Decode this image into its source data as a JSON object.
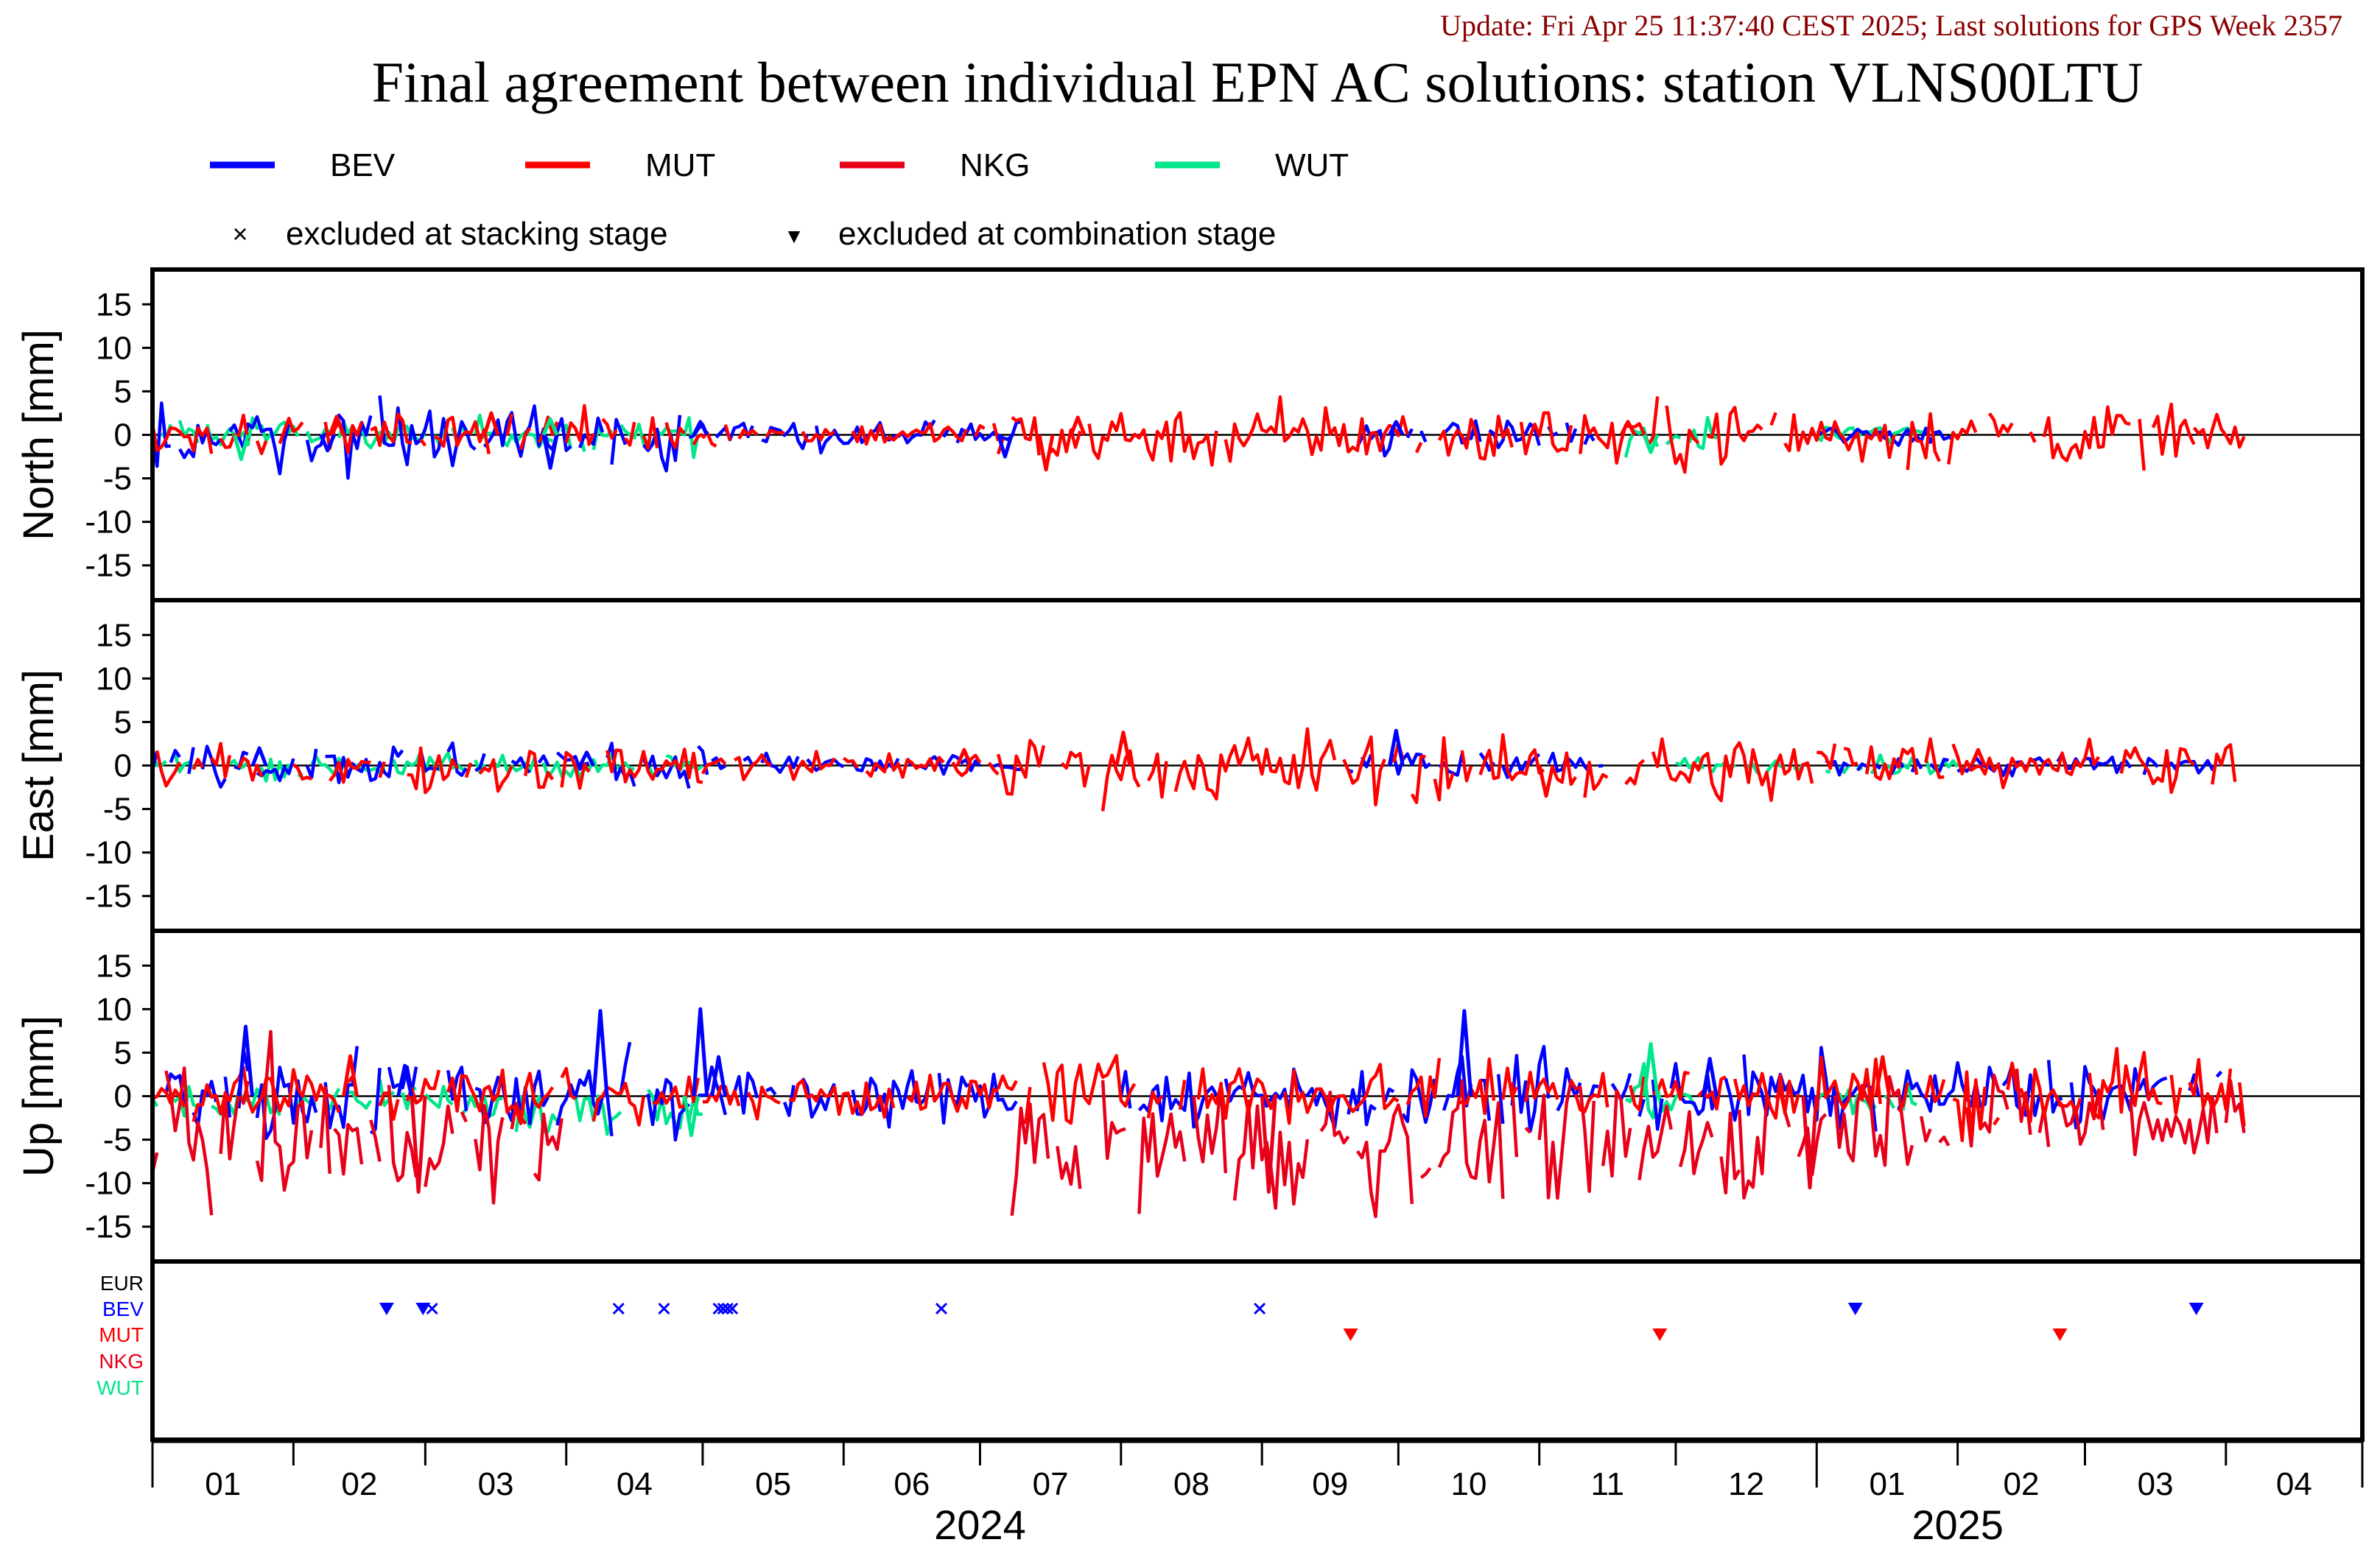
{
  "header": {
    "update_line": "Update: Fri Apr 25 11:37:40 CEST 2025; Last solutions for GPS Week 2357",
    "title": "Final agreement between individual EPN AC solutions: station VLNS00LTU"
  },
  "colors": {
    "BEV": "#0000ff",
    "MUT": "#ff0000",
    "NKG": "#e8001a",
    "WUT": "#00e68a",
    "EUR": "#000000",
    "update": "#8b0000"
  },
  "legend": {
    "series": [
      {
        "name": "BEV",
        "color": "#0000ff"
      },
      {
        "name": "MUT",
        "color": "#ff0000"
      },
      {
        "name": "NKG",
        "color": "#e8001a"
      },
      {
        "name": "WUT",
        "color": "#00e68a"
      }
    ],
    "markers": [
      {
        "symbol": "×",
        "label": "excluded at stacking stage"
      },
      {
        "symbol": "▼",
        "label": "excluded at combination stage"
      }
    ]
  },
  "chart_data": {
    "type": "line",
    "x_axis": {
      "unit": "month",
      "range": [
        "2024-01-01",
        "2025-04-30"
      ],
      "month_labels": [
        "01",
        "02",
        "03",
        "04",
        "05",
        "06",
        "07",
        "08",
        "09",
        "10",
        "11",
        "12",
        "01",
        "02",
        "03",
        "04"
      ],
      "year_labels": [
        {
          "label": "2024",
          "month": "2024-07"
        },
        {
          "label": "2025",
          "month": "2025-02"
        }
      ]
    },
    "panels": [
      {
        "ylabel": "North [mm]",
        "ylim": [
          -19,
          19
        ],
        "yticks": [
          15,
          10,
          5,
          0,
          -5,
          -10,
          -15
        ],
        "profile": [
          {
            "series": "BEV",
            "segments": [
              [
                "2024-01-01",
                "2024-05-02",
                0,
                1.8
              ],
              [
                "2024-05-02",
                "2024-07-10",
                0,
                0.8
              ],
              [
                "2024-09-20",
                "2024-11-15",
                0,
                0.8
              ],
              [
                "2025-01-01",
                "2025-01-31",
                0,
                0.6
              ]
            ]
          },
          {
            "series": "MUT",
            "segments": [
              [
                "2024-01-01",
                "2024-05-01",
                0.2,
                1.2
              ],
              [
                "2024-05-01",
                "2024-07-05",
                0.1,
                0.7
              ],
              [
                "2024-07-05",
                "2025-03-25",
                0,
                1.7
              ],
              [
                "2025-03-25",
                "2025-04-05",
                0,
                0.8
              ]
            ]
          },
          {
            "series": "WUT",
            "segments": [
              [
                "2024-01-01",
                "2024-05-01",
                0,
                0.9
              ],
              [
                "2024-11-20",
                "2024-12-10",
                0,
                0.9
              ],
              [
                "2025-01-01",
                "2025-01-25",
                0,
                0.6
              ]
            ]
          }
        ],
        "spikes": [
          {
            "series": "BEV",
            "date": "2024-03-28",
            "value": -3.8
          },
          {
            "series": "BEV",
            "date": "2024-07-06",
            "value": -2.5
          },
          {
            "series": "BEV",
            "date": "2024-04-30",
            "value": 1.5
          },
          {
            "series": "BEV",
            "date": "2024-09-30",
            "value": 1.5
          },
          {
            "series": "BEV",
            "date": "2024-02-08",
            "value": -1.8
          },
          {
            "series": "WUT",
            "date": "2024-01-20",
            "value": -2.8
          },
          {
            "series": "WUT",
            "date": "2024-03-28",
            "value": 1.8
          },
          {
            "series": "WUT",
            "date": "2024-11-25",
            "value": -2.0
          },
          {
            "series": "MUT",
            "date": "2024-07-15",
            "value": -4.0
          },
          {
            "series": "MUT",
            "date": "2024-03-15",
            "value": 2.5
          },
          {
            "series": "MUT",
            "date": "2024-02-10",
            "value": 2.1
          },
          {
            "series": "MUT",
            "date": "2024-11-20",
            "value": 1.5
          },
          {
            "series": "MUT",
            "date": "2024-07-22",
            "value": 2.0
          }
        ]
      },
      {
        "ylabel": "East [mm]",
        "ylim": [
          -19,
          19
        ],
        "yticks": [
          15,
          10,
          5,
          0,
          -5,
          -10,
          -15
        ],
        "profile": [
          {
            "series": "BEV",
            "segments": [
              [
                "2024-01-01",
                "2024-05-02",
                0.2,
                1.2
              ],
              [
                "2024-05-02",
                "2024-07-10",
                0,
                0.7
              ],
              [
                "2024-09-20",
                "2024-11-15",
                0,
                0.8
              ],
              [
                "2025-01-01",
                "2025-03-30",
                0,
                0.6
              ]
            ]
          },
          {
            "series": "MUT",
            "segments": [
              [
                "2024-01-01",
                "2024-05-01",
                -0.3,
                1.3
              ],
              [
                "2024-05-01",
                "2024-07-05",
                0,
                0.8
              ],
              [
                "2024-07-05",
                "2024-10-15",
                0,
                2.0
              ],
              [
                "2024-10-15",
                "2024-12-31",
                -0.6,
                1.8
              ],
              [
                "2025-01-01",
                "2025-04-05",
                0.4,
                1.3
              ]
            ]
          },
          {
            "series": "WUT",
            "segments": [
              [
                "2024-01-01",
                "2024-05-01",
                0,
                0.7
              ],
              [
                "2024-12-01",
                "2025-02-01",
                0,
                0.5
              ]
            ]
          }
        ],
        "spikes": [
          {
            "series": "BEV",
            "date": "2024-01-24",
            "value": 2.0
          },
          {
            "series": "BEV",
            "date": "2024-09-30",
            "value": 4.0
          },
          {
            "series": "BEV",
            "date": "2024-04-05",
            "value": 1.5
          },
          {
            "series": "MUT",
            "date": "2024-08-01",
            "value": 3.8
          },
          {
            "series": "MUT",
            "date": "2024-11-02",
            "value": -3.5
          },
          {
            "series": "MUT",
            "date": "2024-06-27",
            "value": 1.8
          },
          {
            "series": "MUT",
            "date": "2025-02-05",
            "value": 1.8
          }
        ]
      },
      {
        "ylabel": "Up [mm]",
        "ylim": [
          -19,
          19
        ],
        "yticks": [
          15,
          10,
          5,
          0,
          -5,
          -10,
          -15
        ],
        "profile": [
          {
            "series": "BEV",
            "segments": [
              [
                "2024-01-01",
                "2024-05-02",
                0.3,
                2.5
              ],
              [
                "2024-05-02",
                "2024-07-10",
                0,
                1.5
              ],
              [
                "2024-08-01",
                "2024-09-30",
                0.2,
                2.0
              ],
              [
                "2024-09-30",
                "2024-12-15",
                0.2,
                2.0
              ],
              [
                "2024-12-15",
                "2025-03-31",
                0.3,
                2.0
              ]
            ]
          },
          {
            "series": "MUT",
            "segments": [
              [
                "2024-01-01",
                "2024-05-01",
                0.3,
                1.6
              ],
              [
                "2024-05-01",
                "2024-07-05",
                0,
                1.3
              ],
              [
                "2024-07-05",
                "2024-12-31",
                0.5,
                1.8
              ],
              [
                "2025-01-01",
                "2025-04-05",
                0.5,
                2.2
              ]
            ]
          },
          {
            "series": "NKG",
            "segments": [
              [
                "2024-01-01",
                "2024-02-10",
                -4.5,
                4.0
              ],
              [
                "2024-02-10",
                "2024-03-31",
                -5.5,
                3.0
              ],
              [
                "2024-07-08",
                "2024-08-02",
                -6.0,
                3.5
              ],
              [
                "2024-08-05",
                "2024-12-15",
                -5.5,
                4.0
              ],
              [
                "2024-12-15",
                "2025-01-05",
                -4.0,
                3.5
              ],
              [
                "2025-01-05",
                "2025-04-05",
                -2.5,
                2.5
              ]
            ]
          },
          {
            "series": "WUT",
            "segments": [
              [
                "2024-01-01",
                "2024-02-01",
                -0.8,
                1.0
              ],
              [
                "2024-02-01",
                "2024-03-20",
                -0.5,
                1.0
              ],
              [
                "2024-03-20",
                "2024-05-01",
                -1.8,
                1.4
              ],
              [
                "2024-11-20",
                "2024-12-05",
                0,
                1.5
              ],
              [
                "2025-01-01",
                "2025-01-25",
                -0.5,
                1.0
              ]
            ]
          }
        ],
        "spikes": [
          {
            "series": "BEV",
            "date": "2024-01-21",
            "value": 8.0
          },
          {
            "series": "BEV",
            "date": "2024-04-08",
            "value": 9.8
          },
          {
            "series": "BEV",
            "date": "2024-04-30",
            "value": 10.0
          },
          {
            "series": "BEV",
            "date": "2024-10-15",
            "value": 9.8
          },
          {
            "series": "BEV",
            "date": "2024-05-04",
            "value": 4.5
          },
          {
            "series": "BEV",
            "date": "2024-02-25",
            "value": 3.5
          },
          {
            "series": "BEV",
            "date": "2024-12-08",
            "value": 4.3
          },
          {
            "series": "WUT",
            "date": "2024-11-25",
            "value": 6.0
          },
          {
            "series": "WUT",
            "date": "2024-04-28",
            "value": -4.5
          },
          {
            "series": "MUT",
            "date": "2024-02-13",
            "value": 4.6
          },
          {
            "series": "MUT",
            "date": "2025-01-15",
            "value": 4.5
          },
          {
            "series": "NKG",
            "date": "2024-12-30",
            "value": -10.5
          },
          {
            "series": "NKG",
            "date": "2024-09-02",
            "value": -11.0
          },
          {
            "series": "NKG",
            "date": "2024-02-28",
            "value": -11.0
          }
        ]
      }
    ],
    "exclusion_panel": {
      "rows": [
        "EUR",
        "BEV",
        "MUT",
        "NKG",
        "WUT"
      ],
      "stacking_excluded": [
        {
          "row": "BEV",
          "date": "2024-03-02"
        },
        {
          "row": "BEV",
          "date": "2024-04-12"
        },
        {
          "row": "BEV",
          "date": "2024-04-22"
        },
        {
          "row": "BEV",
          "date": "2024-05-04"
        },
        {
          "row": "BEV",
          "date": "2024-05-05"
        },
        {
          "row": "BEV",
          "date": "2024-05-06"
        },
        {
          "row": "BEV",
          "date": "2024-05-07"
        },
        {
          "row": "BEV",
          "date": "2024-06-22"
        },
        {
          "row": "BEV",
          "date": "2024-08-31"
        }
      ],
      "combination_excluded": [
        {
          "row": "BEV",
          "date": "2024-02-21"
        },
        {
          "row": "BEV",
          "date": "2024-02-29"
        },
        {
          "row": "MUT",
          "date": "2024-09-20"
        },
        {
          "row": "MUT",
          "date": "2024-11-27"
        },
        {
          "row": "BEV",
          "date": "2025-01-09"
        },
        {
          "row": "MUT",
          "date": "2025-02-23"
        },
        {
          "row": "BEV",
          "date": "2025-03-25"
        }
      ]
    }
  }
}
